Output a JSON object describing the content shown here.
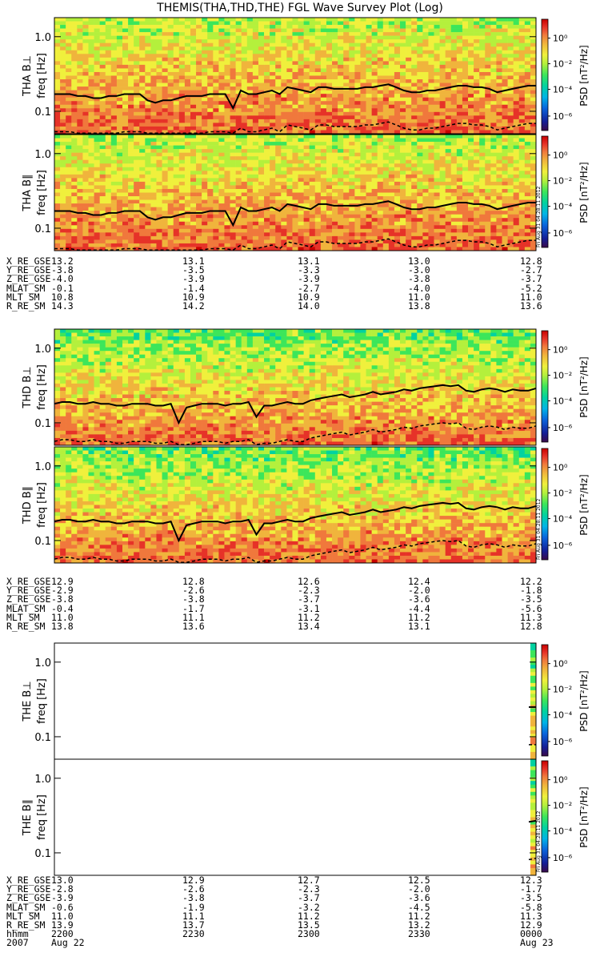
{
  "title": "THEMIS(THA,THD,THE) FGL Wave Survey Plot (Log)",
  "colors": {
    "background": "#ffffff",
    "trace": "#000000",
    "colormap": [
      "#3a0a4a",
      "#141e96",
      "#0a64dc",
      "#00b4e6",
      "#00d2a0",
      "#3ce65a",
      "#b4f03c",
      "#f0f03c",
      "#f0b43c",
      "#f0783c",
      "#e63228",
      "#c80000"
    ]
  },
  "colorbar": {
    "label": "PSD [nT²/Hz]",
    "ticks": [
      "10⁰",
      "10⁻²",
      "10⁻⁴",
      "10⁻⁶"
    ],
    "side_stamp": "Fri Aug 31 04:28:11 2012"
  },
  "panels": [
    {
      "id": "tha-bperp",
      "ylabel_probe": "THA B⊥",
      "ylabel_freq": "freq [Hz]",
      "yticks": [
        "1.0",
        "0.1"
      ]
    },
    {
      "id": "tha-bpar",
      "ylabel_probe": "THA B∥",
      "ylabel_freq": "freq [Hz]",
      "yticks": [
        "1.0",
        "0.1"
      ]
    },
    {
      "id": "thd-bperp",
      "ylabel_probe": "THD B⊥",
      "ylabel_freq": "freq [Hz]",
      "yticks": [
        "1.0",
        "0.1"
      ]
    },
    {
      "id": "thd-bpar",
      "ylabel_probe": "THD B∥",
      "ylabel_freq": "freq [Hz]",
      "yticks": [
        "1.0",
        "0.1"
      ]
    },
    {
      "id": "the-bperp",
      "ylabel_probe": "THE B⊥",
      "ylabel_freq": "freq [Hz]",
      "yticks": [
        "1.0",
        "0.1"
      ]
    },
    {
      "id": "the-bpar",
      "ylabel_probe": "THE B∥",
      "ylabel_freq": "freq [Hz]",
      "yticks": [
        "1.0",
        "0.1"
      ]
    }
  ],
  "ephemeris": [
    {
      "probe": "THA",
      "rows": [
        {
          "label": "X_RE_GSE",
          "values": [
            "13.2",
            "13.1",
            "13.1",
            "13.0",
            "12.8"
          ]
        },
        {
          "label": "Y_RE_GSE",
          "values": [
            "-3.8",
            "-3.5",
            "-3.3",
            "-3.0",
            "-2.7"
          ]
        },
        {
          "label": "Z_RE_GSE",
          "values": [
            "-4.0",
            "-3.9",
            "-3.9",
            "-3.8",
            "-3.7"
          ]
        },
        {
          "label": "MLAT_SM",
          "values": [
            "-0.1",
            "-1.4",
            "-2.7",
            "-4.0",
            "-5.2"
          ]
        },
        {
          "label": "MLT_SM",
          "values": [
            "10.8",
            "10.9",
            "10.9",
            "11.0",
            "11.0"
          ]
        },
        {
          "label": "R_RE_SM",
          "values": [
            "14.3",
            "14.2",
            "14.0",
            "13.8",
            "13.6"
          ]
        }
      ]
    },
    {
      "probe": "THD",
      "rows": [
        {
          "label": "X_RE_GSE",
          "values": [
            "12.9",
            "12.8",
            "12.6",
            "12.4",
            "12.2"
          ]
        },
        {
          "label": "Y_RE_GSE",
          "values": [
            "-2.9",
            "-2.6",
            "-2.3",
            "-2.0",
            "-1.8"
          ]
        },
        {
          "label": "Z_RE_GSE",
          "values": [
            "-3.8",
            "-3.8",
            "-3.7",
            "-3.6",
            "-3.5"
          ]
        },
        {
          "label": "MLAT_SM",
          "values": [
            "-0.4",
            "-1.7",
            "-3.1",
            "-4.4",
            "-5.6"
          ]
        },
        {
          "label": "MLT_SM",
          "values": [
            "11.0",
            "11.1",
            "11.2",
            "11.2",
            "11.3"
          ]
        },
        {
          "label": "R_RE_SM",
          "values": [
            "13.8",
            "13.6",
            "13.4",
            "13.1",
            "12.8"
          ]
        }
      ]
    },
    {
      "probe": "THE",
      "rows": [
        {
          "label": "X_RE_GSE",
          "values": [
            "13.0",
            "12.9",
            "12.7",
            "12.5",
            "12.3"
          ]
        },
        {
          "label": "Y_RE_GSE",
          "values": [
            "-2.8",
            "-2.6",
            "-2.3",
            "-2.0",
            "-1.7"
          ]
        },
        {
          "label": "Z_RE_GSE",
          "values": [
            "-3.9",
            "-3.8",
            "-3.7",
            "-3.6",
            "-3.5"
          ]
        },
        {
          "label": "MLAT_SM",
          "values": [
            "-0.6",
            "-1.9",
            "-3.2",
            "-4.5",
            "-5.8"
          ]
        },
        {
          "label": "MLT_SM",
          "values": [
            "11.0",
            "11.1",
            "11.2",
            "11.2",
            "11.3"
          ]
        },
        {
          "label": "R_RE_SM",
          "values": [
            "13.9",
            "13.7",
            "13.5",
            "13.2",
            "12.9"
          ]
        },
        {
          "label": "hhmm",
          "values": [
            "2200",
            "2230",
            "2300",
            "2330",
            "0000"
          ]
        },
        {
          "label": "2007",
          "values": [
            "Aug 22",
            "",
            "",
            "",
            "Aug 23"
          ]
        }
      ]
    }
  ],
  "chart_data": {
    "type": "heatmap",
    "title": "THEMIS(THA,THD,THE) FGL Wave Survey Plot (Log)",
    "x": [
      "2200",
      "2230",
      "2300",
      "2330",
      "0000"
    ],
    "x_dates": {
      "start": "2007 Aug 22",
      "end": "Aug 23"
    },
    "ylabel": "freq [Hz]",
    "yscale": "log",
    "ylim": [
      0.05,
      1.8
    ],
    "colorbar_label": "PSD [nT²/Hz]",
    "colorbar_scale": "log",
    "colorbar_range": [
      1e-07,
      10
    ],
    "series": [
      {
        "name": "THA B⊥",
        "trace_hz": [
          0.17,
          0.17,
          0.17,
          0.16,
          0.16,
          0.15,
          0.15,
          0.16,
          0.16,
          0.17,
          0.17,
          0.17,
          0.14,
          0.13,
          0.14,
          0.14,
          0.15,
          0.16,
          0.16,
          0.16,
          0.17,
          0.17,
          0.17,
          0.11,
          0.19,
          0.17,
          0.17,
          0.18,
          0.19,
          0.17,
          0.21,
          0.2,
          0.19,
          0.18,
          0.21,
          0.21,
          0.2,
          0.2,
          0.2,
          0.2,
          0.21,
          0.21,
          0.22,
          0.23,
          0.21,
          0.19,
          0.18,
          0.18,
          0.19,
          0.19,
          0.2,
          0.21,
          0.22,
          0.22,
          0.21,
          0.21,
          0.2,
          0.18,
          0.19,
          0.2,
          0.21,
          0.22,
          0.22
        ]
      },
      {
        "name": "THA B∥",
        "trace_hz": [
          0.17,
          0.17,
          0.17,
          0.16,
          0.16,
          0.15,
          0.15,
          0.16,
          0.16,
          0.17,
          0.17,
          0.17,
          0.14,
          0.13,
          0.14,
          0.14,
          0.15,
          0.16,
          0.16,
          0.16,
          0.17,
          0.17,
          0.17,
          0.11,
          0.19,
          0.17,
          0.17,
          0.18,
          0.19,
          0.17,
          0.21,
          0.2,
          0.19,
          0.18,
          0.21,
          0.21,
          0.2,
          0.2,
          0.2,
          0.2,
          0.21,
          0.21,
          0.22,
          0.23,
          0.21,
          0.19,
          0.18,
          0.18,
          0.19,
          0.19,
          0.2,
          0.21,
          0.22,
          0.22,
          0.21,
          0.21,
          0.2,
          0.18,
          0.19,
          0.2,
          0.21,
          0.22,
          0.22
        ]
      },
      {
        "name": "THD B⊥",
        "trace_hz": [
          0.18,
          0.19,
          0.19,
          0.18,
          0.18,
          0.19,
          0.18,
          0.18,
          0.17,
          0.17,
          0.18,
          0.18,
          0.18,
          0.17,
          0.17,
          0.18,
          0.1,
          0.16,
          0.17,
          0.18,
          0.18,
          0.18,
          0.17,
          0.18,
          0.18,
          0.19,
          0.12,
          0.17,
          0.17,
          0.18,
          0.19,
          0.18,
          0.18,
          0.2,
          0.21,
          0.22,
          0.23,
          0.24,
          0.22,
          0.23,
          0.24,
          0.26,
          0.24,
          0.25,
          0.26,
          0.28,
          0.27,
          0.29,
          0.3,
          0.31,
          0.32,
          0.31,
          0.32,
          0.27,
          0.26,
          0.28,
          0.29,
          0.28,
          0.26,
          0.28,
          0.27,
          0.27,
          0.29
        ]
      },
      {
        "name": "THD B∥",
        "trace_hz": [
          0.18,
          0.19,
          0.19,
          0.18,
          0.18,
          0.19,
          0.18,
          0.18,
          0.17,
          0.17,
          0.18,
          0.18,
          0.18,
          0.17,
          0.17,
          0.18,
          0.1,
          0.16,
          0.17,
          0.18,
          0.18,
          0.18,
          0.17,
          0.18,
          0.18,
          0.19,
          0.12,
          0.17,
          0.17,
          0.18,
          0.19,
          0.18,
          0.18,
          0.2,
          0.21,
          0.22,
          0.23,
          0.24,
          0.22,
          0.23,
          0.24,
          0.26,
          0.24,
          0.25,
          0.26,
          0.28,
          0.27,
          0.29,
          0.3,
          0.31,
          0.32,
          0.31,
          0.32,
          0.27,
          0.26,
          0.28,
          0.29,
          0.28,
          0.26,
          0.28,
          0.27,
          0.27,
          0.29
        ]
      },
      {
        "name": "THE B⊥",
        "coverage_x_frac": [
          0.985,
          1.0
        ],
        "trace_hz": [
          0.25,
          0.25
        ]
      },
      {
        "name": "THE B∥",
        "coverage_x_frac": [
          0.985,
          1.0
        ],
        "trace_hz": [
          0.26,
          0.27
        ]
      }
    ]
  }
}
